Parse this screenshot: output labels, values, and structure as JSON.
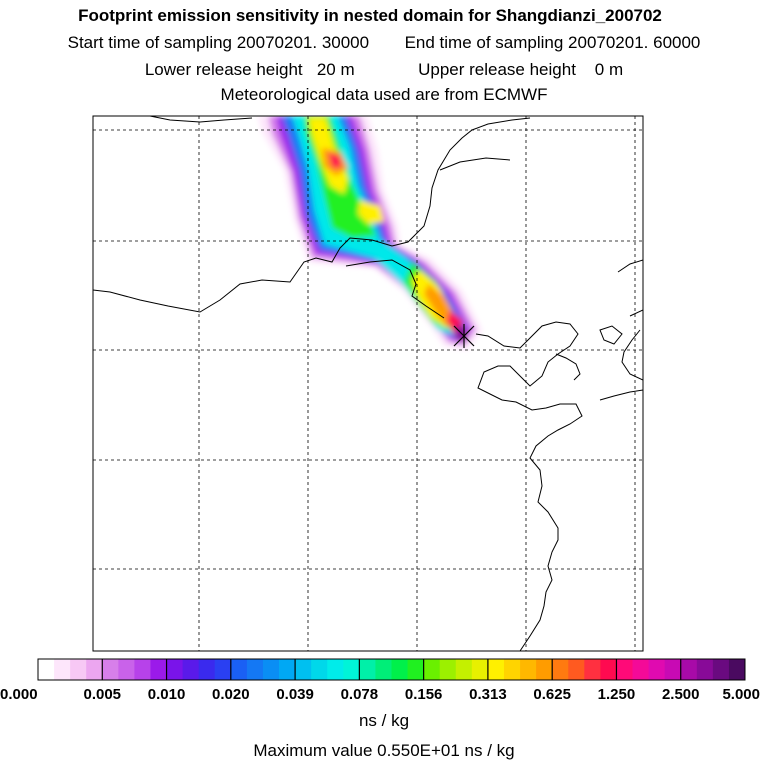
{
  "header": {
    "title": "Footprint emission sensitivity in nested domain for Shangdianzi_200702",
    "start_label": "Start time of sampling 20070201. 30000",
    "end_label": "End time of sampling 20070201. 60000",
    "lower_label": "Lower release height   20 m",
    "upper_label": "Upper release height    0 m",
    "met_label": "Meteorological data used are from ECMWF"
  },
  "colorbar": {
    "tick_labels": [
      "0.000",
      "0.005",
      "0.010",
      "0.020",
      "0.039",
      "0.078",
      "0.156",
      "0.313",
      "0.625",
      "1.250",
      "2.500",
      "5.000"
    ],
    "colors": [
      "#ffffff",
      "#fde6fb",
      "#f7c8f5",
      "#eca6f0",
      "#d77fea",
      "#c962ea",
      "#b742ea",
      "#9b1aea",
      "#7a14ea",
      "#5a1aea",
      "#3a2aee",
      "#2a40f2",
      "#1a60f4",
      "#1478f4",
      "#0a8ef4",
      "#00a8f4",
      "#00c0f0",
      "#00d8ea",
      "#00ecea",
      "#00f4d8",
      "#00f0a8",
      "#00ee78",
      "#00f04a",
      "#20f020",
      "#6af000",
      "#9cf000",
      "#c4f000",
      "#e8f000",
      "#fff000",
      "#ffd400",
      "#ffb800",
      "#ff9c00",
      "#ff7a10",
      "#ff5a20",
      "#ff3040",
      "#ff0a50",
      "#ff0a78",
      "#f40a98",
      "#e00ab0",
      "#c80ab4",
      "#a80aa8",
      "#880a98",
      "#6a0a80",
      "#4a0a60"
    ],
    "units": "ns / kg",
    "maximum_label": "Maximum value  0.550E+01 ns / kg"
  },
  "map": {
    "receptor_marker": "star-marker",
    "plume_colors": {
      "level1": "#fde6fb",
      "level2": "#d77fea",
      "level3": "#9b1aea",
      "level4": "#1478f4",
      "level5": "#00e8ea",
      "level6": "#20f020",
      "level7": "#fff000",
      "level8": "#ff9c00",
      "level9": "#ff0a50",
      "level10": "#880a98"
    }
  }
}
